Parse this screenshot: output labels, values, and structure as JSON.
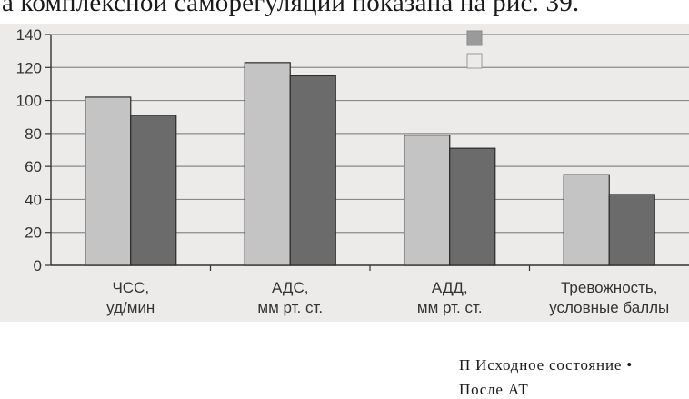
{
  "page": {
    "top_text": "а комплексной саморегуляции показана на рис. 39.",
    "legend_line_1": "П Исходное состояние •",
    "legend_line_2": "После АТ"
  },
  "chart_data": {
    "type": "bar",
    "title": "",
    "xlabel": "",
    "ylabel": "",
    "ylim": [
      0,
      140
    ],
    "yticks": [
      0,
      20,
      40,
      60,
      80,
      100,
      120,
      140
    ],
    "grid": true,
    "categories": [
      [
        "ЧСС,",
        "уд/мин"
      ],
      [
        "АДС,",
        "мм рт. ст."
      ],
      [
        "АДД,",
        "мм рт. ст."
      ],
      [
        "Тревожность,",
        "условные баллы"
      ]
    ],
    "series": [
      {
        "values": [
          102,
          123,
          79,
          55
        ],
        "color": "#c4c4c4"
      },
      {
        "values": [
          91,
          115,
          71,
          43
        ],
        "color": "#6b6b6b"
      }
    ],
    "legend": "bottom-right"
  }
}
